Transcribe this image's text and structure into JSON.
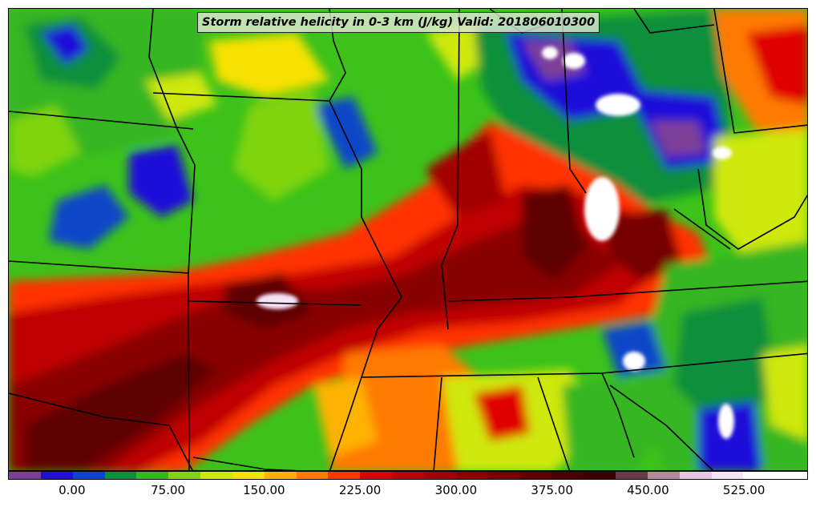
{
  "title": "Storm relative helicity in 0-3 km (J/kg) Valid: 201806010300",
  "colorbar": {
    "colors": [
      "#7d3f98",
      "#1f0fd8",
      "#0b46c8",
      "#0e8f3a",
      "#36b623",
      "#7fd40f",
      "#cfe808",
      "#f6e100",
      "#ffb200",
      "#ff7a00",
      "#ff3300",
      "#e00000",
      "#c00000",
      "#a30000",
      "#8a0000",
      "#760000",
      "#5e0000",
      "#4a0000",
      "#3c0000",
      "#6b3a48",
      "#b48aa0",
      "#e9c4e6",
      "#f7e3f7",
      "#ffffff",
      "#ffffff"
    ],
    "tick_labels": [
      "0.00",
      "75.00",
      "150.00",
      "225.00",
      "300.00",
      "375.00",
      "450.00",
      "525.00"
    ],
    "tick_values": [
      0,
      75,
      150,
      225,
      300,
      375,
      450,
      525
    ],
    "range": [
      -50,
      575
    ]
  },
  "map": {
    "background_color": "#3cc21a",
    "boundary_color": "#000000"
  }
}
